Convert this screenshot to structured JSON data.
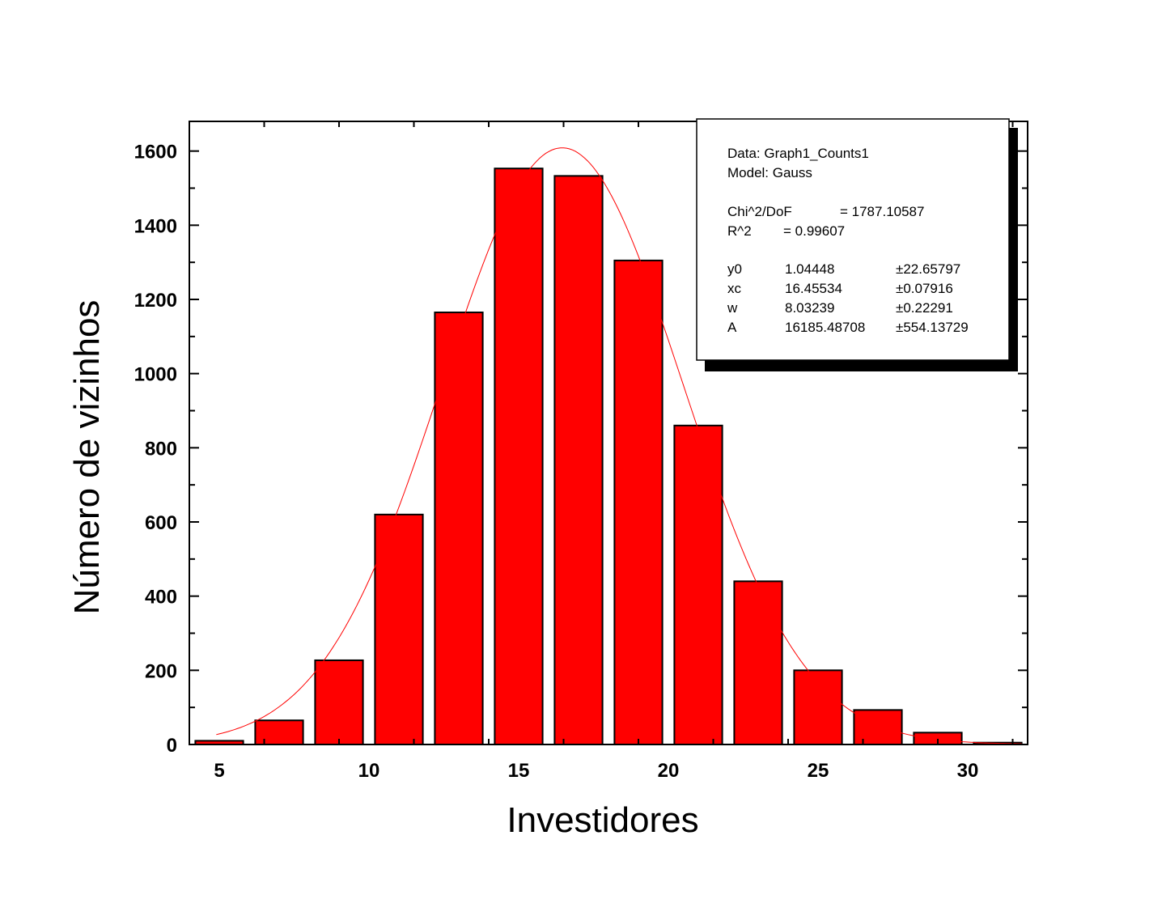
{
  "chart_data": {
    "type": "bar",
    "xlabel": "Investidores",
    "ylabel": "Número de vizinhos",
    "xlim": [
      4,
      32
    ],
    "ylim": [
      0,
      1680
    ],
    "x_ticks": [
      5,
      10,
      15,
      20,
      25,
      30
    ],
    "y_ticks": [
      0,
      200,
      400,
      600,
      800,
      1000,
      1200,
      1400,
      1600
    ],
    "bar_color": "#ff0000",
    "fit_color": "#ff0000",
    "bar_width": 1.6,
    "x": [
      5,
      7,
      9,
      11,
      13,
      15,
      17,
      19,
      21,
      23,
      25,
      27,
      29,
      31
    ],
    "values": [
      10,
      65,
      227,
      620,
      1165,
      1553,
      1533,
      1305,
      860,
      440,
      200,
      93,
      32,
      5
    ],
    "fit": {
      "model": "Gauss",
      "y0": 1.04448,
      "xc": 16.45534,
      "w": 8.03239,
      "A": 16185.48708
    },
    "stats_box": {
      "legend_position": "top-right",
      "lines": [
        {
          "label": "Data: Graph1_Counts1"
        },
        {
          "label": "Model: Gauss"
        },
        {
          "label": "Chi^2/DoF",
          "value": "= 1787.10587"
        },
        {
          "label": "R^2",
          "value": "=  0.99607"
        },
        {
          "label": "y0",
          "value": "1.04448",
          "error": "±22.65797"
        },
        {
          "label": "xc",
          "value": "16.45534",
          "error": "±0.07916"
        },
        {
          "label": "w",
          "value": "8.03239",
          "error": "±0.22291"
        },
        {
          "label": "A",
          "value": "16185.48708",
          "error": "±554.13729"
        }
      ]
    }
  }
}
